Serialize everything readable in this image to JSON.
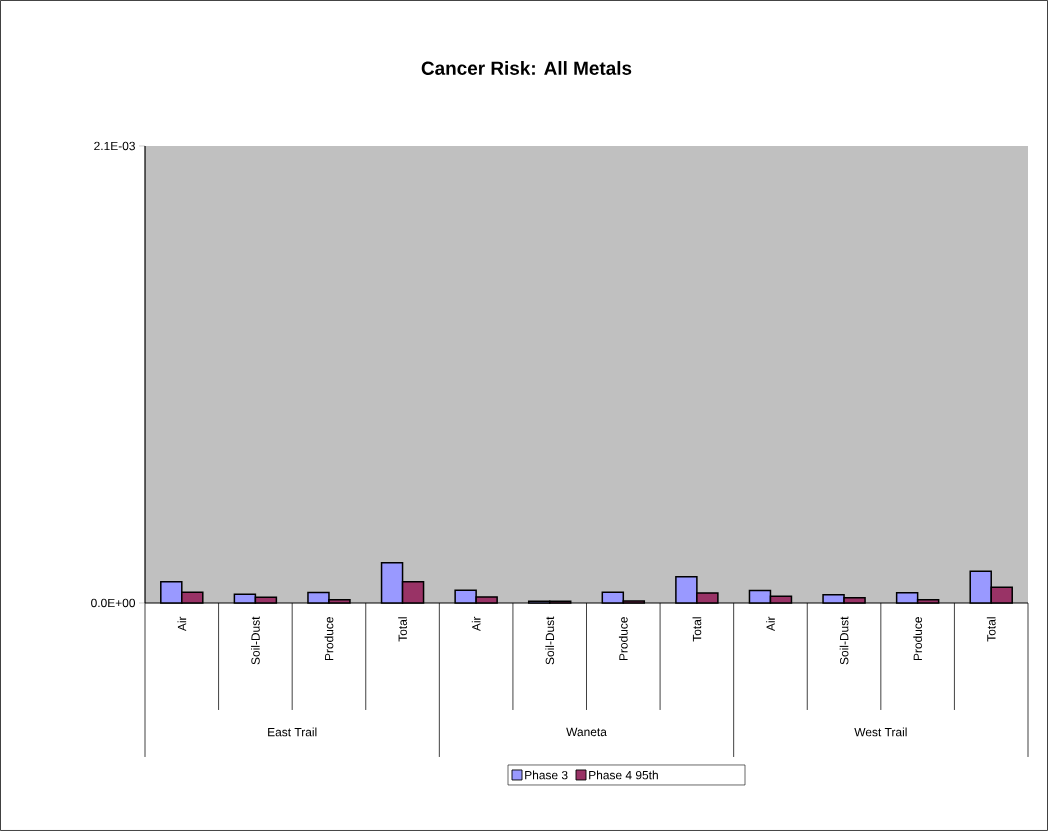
{
  "chart_data": {
    "type": "bar",
    "title": "Cancer Risk: All Metals",
    "categories": [
      "Air",
      "Soil-Dust",
      "Produce",
      "Total",
      "Air",
      "Soil-Dust",
      "Produce",
      "Total",
      "Air",
      "Soil-Dust",
      "Produce",
      "Total"
    ],
    "series": [
      {
        "name": "Phase 3",
        "color": "#9999ff",
        "values": [
          9.7e-05,
          4e-05,
          4.8e-05,
          0.000185,
          5.8e-05,
          8e-06,
          4.9e-05,
          0.00012,
          5.7e-05,
          3.8e-05,
          4.7e-05,
          0.000146
        ]
      },
      {
        "name": "Phase 4 95th",
        "color": "#993366",
        "values": [
          4.9e-05,
          2.6e-05,
          1.5e-05,
          9.7e-05,
          2.8e-05,
          8e-06,
          9e-06,
          4.6e-05,
          3.1e-05,
          2.4e-05,
          1.5e-05,
          7.2e-05
        ]
      }
    ],
    "annotations": [
      "East Trail",
      "Waneta",
      "West Trail"
    ],
    "ylim": [
      0,
      0.0021
    ],
    "yticks": [
      {
        "value": 0,
        "label": "0.0E+00"
      },
      {
        "value": 0.0021,
        "label": "2.1E-03"
      }
    ],
    "legend": "bottom"
  }
}
